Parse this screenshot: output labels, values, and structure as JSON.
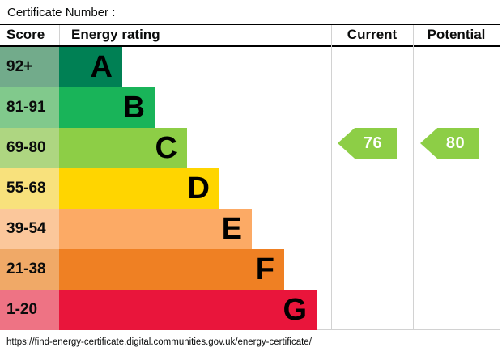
{
  "title": "Certificate Number :",
  "url": "https://find-energy-certificate.digital.communities.gov.uk/energy-certificate/",
  "header": {
    "score": "Score",
    "energy_rating": "Energy rating",
    "current": "Current",
    "potential": "Potential"
  },
  "chart_data": {
    "type": "bar",
    "title": "Energy rating",
    "legend_position": "none",
    "bands": [
      {
        "letter": "A",
        "score_range": "92+",
        "bar_color": "#008054",
        "score_cell_color": "#72ab8b"
      },
      {
        "letter": "B",
        "score_range": "81-91",
        "bar_color": "#19b459",
        "score_cell_color": "#81c98c"
      },
      {
        "letter": "C",
        "score_range": "69-80",
        "bar_color": "#8dce46",
        "score_cell_color": "#aed681"
      },
      {
        "letter": "D",
        "score_range": "55-68",
        "bar_color": "#ffd500",
        "score_cell_color": "#f8e17c"
      },
      {
        "letter": "E",
        "score_range": "39-54",
        "bar_color": "#fcaa65",
        "score_cell_color": "#fbc79b"
      },
      {
        "letter": "F",
        "score_range": "21-38",
        "bar_color": "#ef8023",
        "score_cell_color": "#f0a967"
      },
      {
        "letter": "G",
        "score_range": "1-20",
        "bar_color": "#e9153b",
        "score_cell_color": "#ee7384"
      }
    ],
    "current": {
      "value": "76",
      "band": "C",
      "color": "#8dce46"
    },
    "potential": {
      "value": "80",
      "band": "C",
      "color": "#8dce46"
    }
  }
}
